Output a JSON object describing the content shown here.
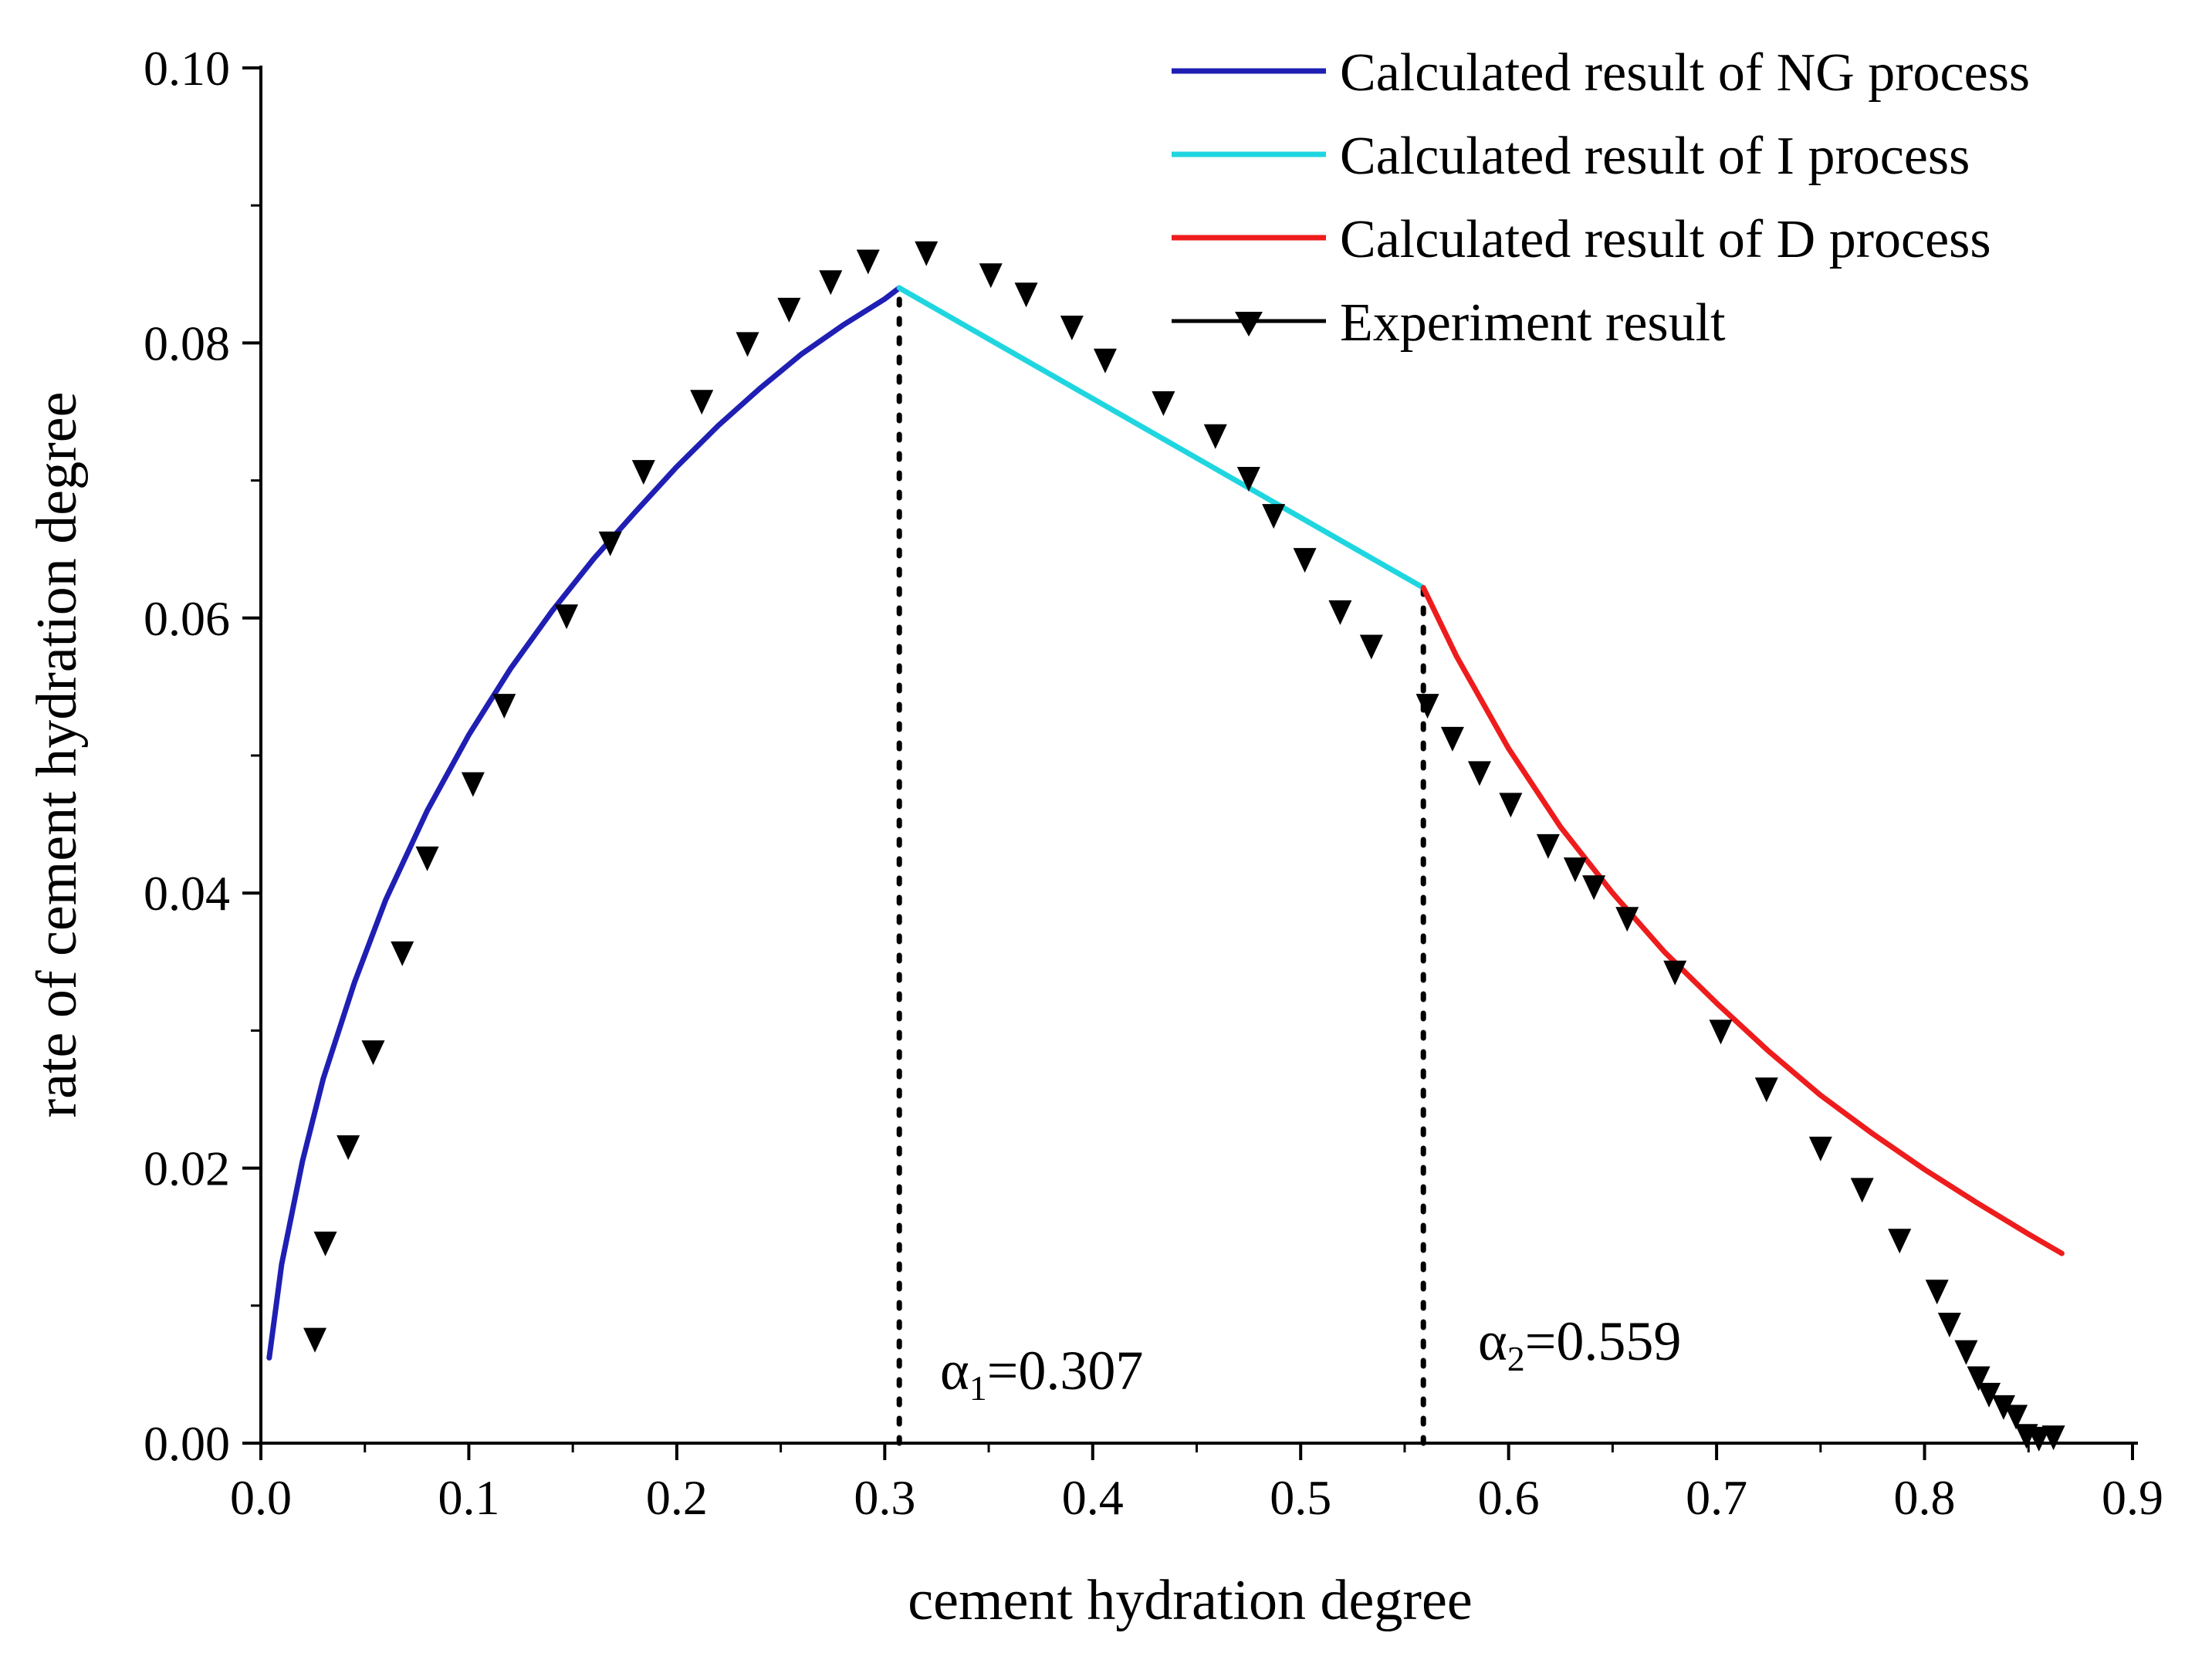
{
  "chart_data": {
    "type": "line",
    "title": "",
    "xlabel": "cement hydration degree",
    "ylabel": "rate of cement hydration degree",
    "xlim": [
      0.0,
      0.9
    ],
    "ylim": [
      0.0,
      0.1
    ],
    "x_ticks": [
      0.0,
      0.1,
      0.2,
      0.3,
      0.4,
      0.5,
      0.6,
      0.7,
      0.8,
      0.9
    ],
    "x_tick_labels": [
      "0.0",
      "0.1",
      "0.2",
      "0.3",
      "0.4",
      "0.5",
      "0.6",
      "0.7",
      "0.8",
      "0.9"
    ],
    "y_ticks": [
      0.0,
      0.02,
      0.04,
      0.06,
      0.08,
      0.1
    ],
    "y_tick_labels": [
      "0.00",
      "0.02",
      "0.04",
      "0.06",
      "0.08",
      "0.10"
    ],
    "grid": false,
    "legend_position": "top-right",
    "series": [
      {
        "name": "Calculated result of NG process",
        "type": "line",
        "color": "#1f1fb4",
        "x": [
          0.004,
          0.01,
          0.02,
          0.03,
          0.045,
          0.06,
          0.08,
          0.1,
          0.12,
          0.14,
          0.16,
          0.18,
          0.2,
          0.22,
          0.24,
          0.26,
          0.28,
          0.3,
          0.307
        ],
        "y": [
          0.0062,
          0.013,
          0.0205,
          0.0265,
          0.0335,
          0.0395,
          0.046,
          0.0515,
          0.0563,
          0.0605,
          0.0643,
          0.0677,
          0.071,
          0.074,
          0.0767,
          0.0792,
          0.0813,
          0.0832,
          0.084
        ]
      },
      {
        "name": "Calculated result of I process",
        "type": "line",
        "color": "#1fd6e0",
        "x": [
          0.307,
          0.559
        ],
        "y": [
          0.084,
          0.0622
        ]
      },
      {
        "name": "Calculated result of D process",
        "type": "line",
        "color": "#ee1c1c",
        "x": [
          0.559,
          0.575,
          0.6,
          0.625,
          0.65,
          0.675,
          0.7,
          0.725,
          0.75,
          0.775,
          0.8,
          0.825,
          0.85,
          0.866
        ],
        "y": [
          0.0622,
          0.0572,
          0.0505,
          0.0448,
          0.04,
          0.0357,
          0.032,
          0.0285,
          0.0253,
          0.0225,
          0.0199,
          0.0175,
          0.0152,
          0.0138
        ]
      },
      {
        "name": "Experiment result",
        "type": "scatter",
        "marker": "triangle-down",
        "color": "#000000",
        "x": [
          0.026,
          0.031,
          0.042,
          0.054,
          0.068,
          0.08,
          0.102,
          0.117,
          0.147,
          0.168,
          0.184,
          0.212,
          0.234,
          0.254,
          0.274,
          0.292,
          0.32,
          0.351,
          0.368,
          0.39,
          0.406,
          0.434,
          0.459,
          0.475,
          0.487,
          0.502,
          0.519,
          0.534,
          0.561,
          0.573,
          0.586,
          0.601,
          0.619,
          0.632,
          0.641,
          0.657,
          0.68,
          0.702,
          0.724,
          0.75,
          0.77,
          0.788,
          0.806,
          0.812,
          0.82,
          0.826,
          0.831,
          0.838,
          0.844,
          0.849,
          0.855,
          0.862
        ],
        "y": [
          0.0076,
          0.0146,
          0.0216,
          0.0285,
          0.0357,
          0.0426,
          0.048,
          0.0537,
          0.0602,
          0.0655,
          0.0707,
          0.0758,
          0.08,
          0.0825,
          0.0845,
          0.086,
          0.0866,
          0.085,
          0.0836,
          0.0812,
          0.0788,
          0.0757,
          0.0733,
          0.0702,
          0.0675,
          0.0643,
          0.0605,
          0.058,
          0.0537,
          0.0513,
          0.0488,
          0.0465,
          0.0435,
          0.0418,
          0.0405,
          0.0382,
          0.0343,
          0.03,
          0.0258,
          0.0215,
          0.0185,
          0.0148,
          0.0111,
          0.0087,
          0.0067,
          0.0048,
          0.0036,
          0.0027,
          0.002,
          0.0006,
          0.0004,
          0.0005
        ]
      }
    ],
    "annotations": [
      {
        "symbol": "α",
        "subscript": "1",
        "value_text": "=0.307",
        "x": 0.307
      },
      {
        "symbol": "α",
        "subscript": "2",
        "value_text": "=0.559",
        "x": 0.559
      }
    ]
  }
}
